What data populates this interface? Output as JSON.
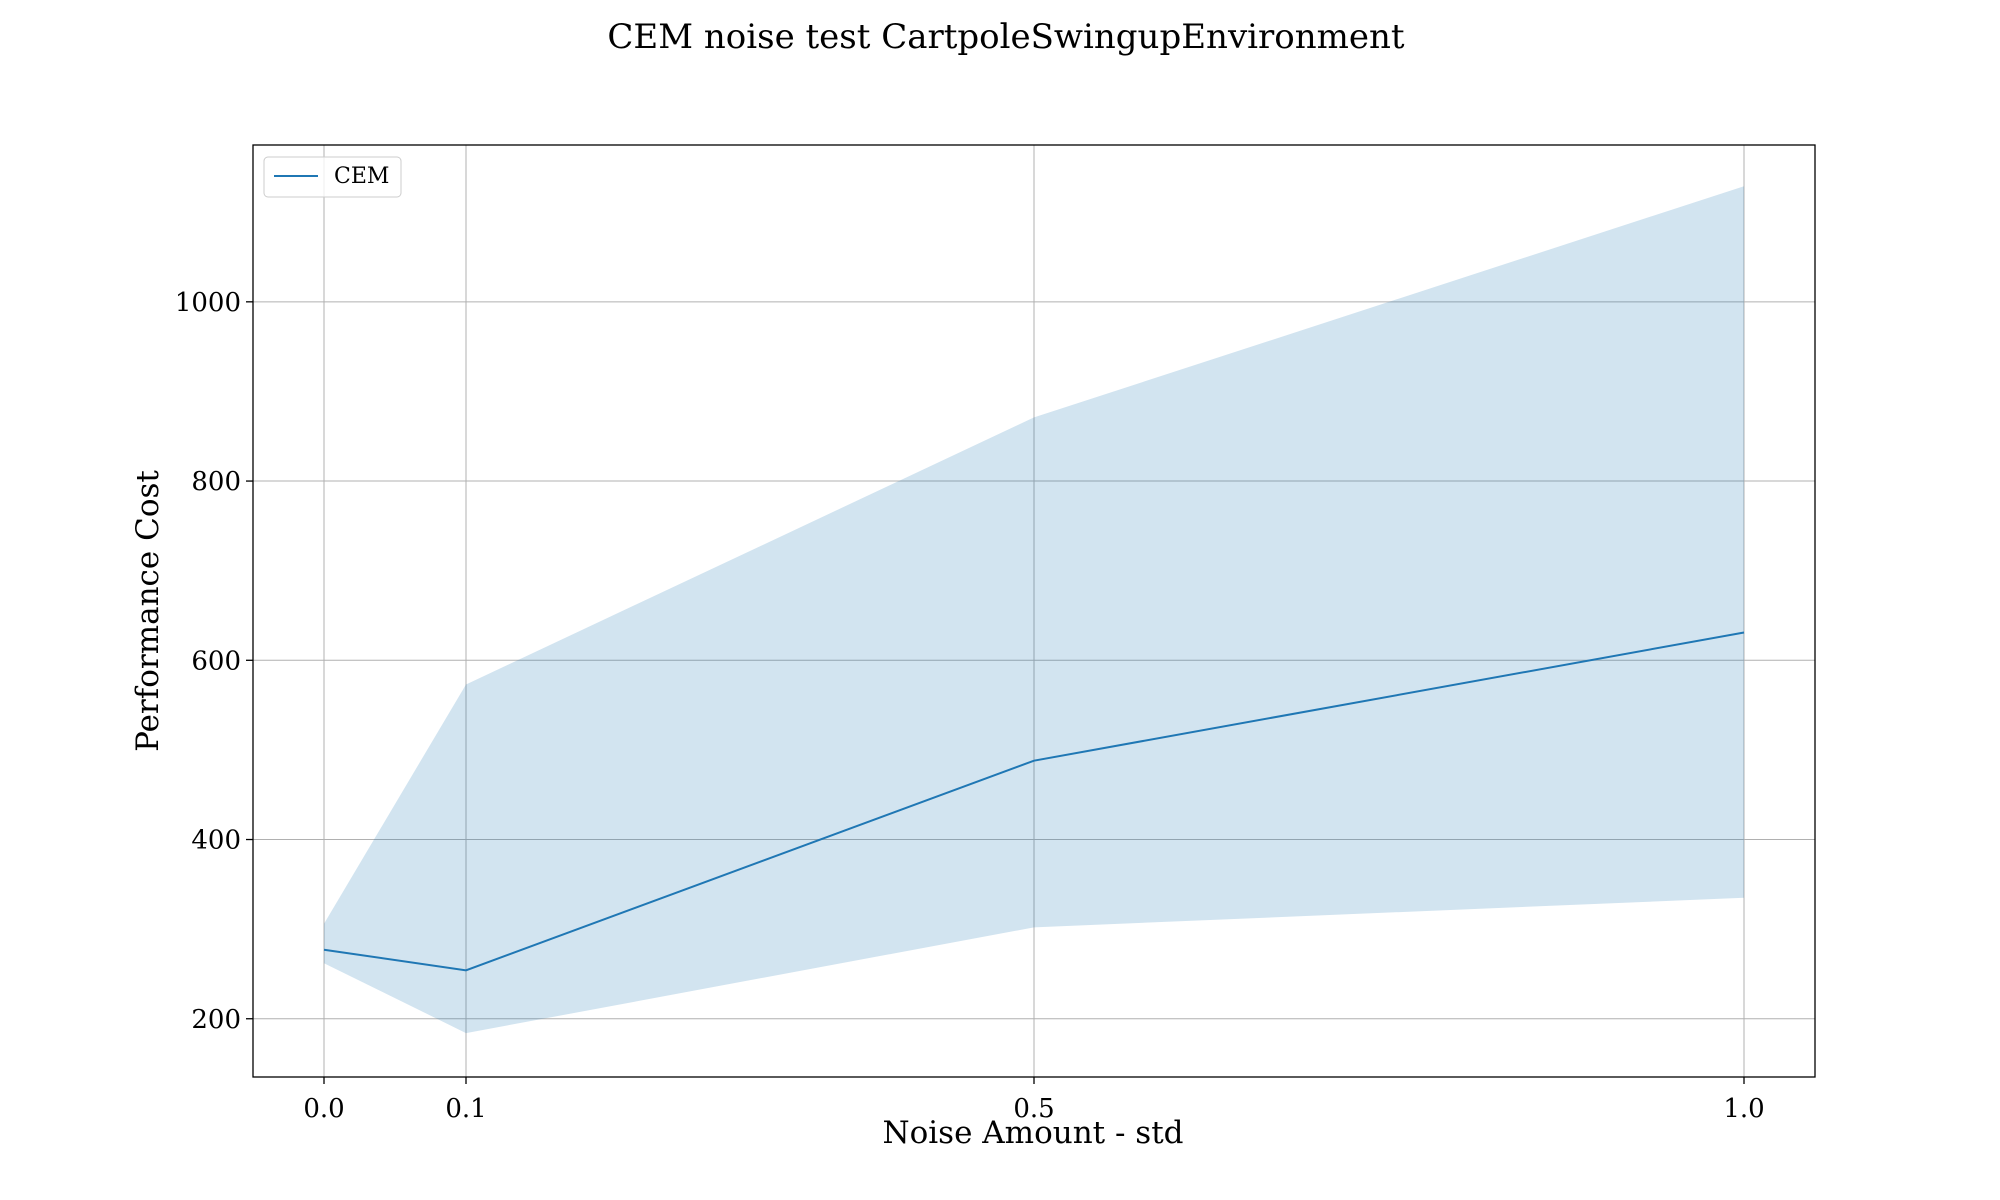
{
  "chart_data": {
    "type": "line",
    "title": "CEM noise test CartpoleSwingupEnvironment",
    "xlabel": "Noise Amount - std",
    "ylabel": "Performance Cost",
    "x": [
      0.0,
      0.1,
      0.5,
      1.0
    ],
    "x_tick_labels": [
      "0.0",
      "0.1",
      "0.5",
      "1.0"
    ],
    "y_ticks": [
      200,
      400,
      600,
      800,
      1000
    ],
    "xlim": [
      -0.05,
      1.05
    ],
    "ylim": [
      135,
      1175
    ],
    "grid": true,
    "legend_position": "top-left",
    "series": [
      {
        "name": "CEM",
        "color": "#1f77b4",
        "band_color": "#1f77b4",
        "band_opacity": 0.2,
        "values": [
          277,
          254,
          488,
          631
        ],
        "lower": [
          262,
          184,
          302,
          335
        ],
        "upper": [
          306,
          573,
          871,
          1129
        ]
      }
    ]
  }
}
